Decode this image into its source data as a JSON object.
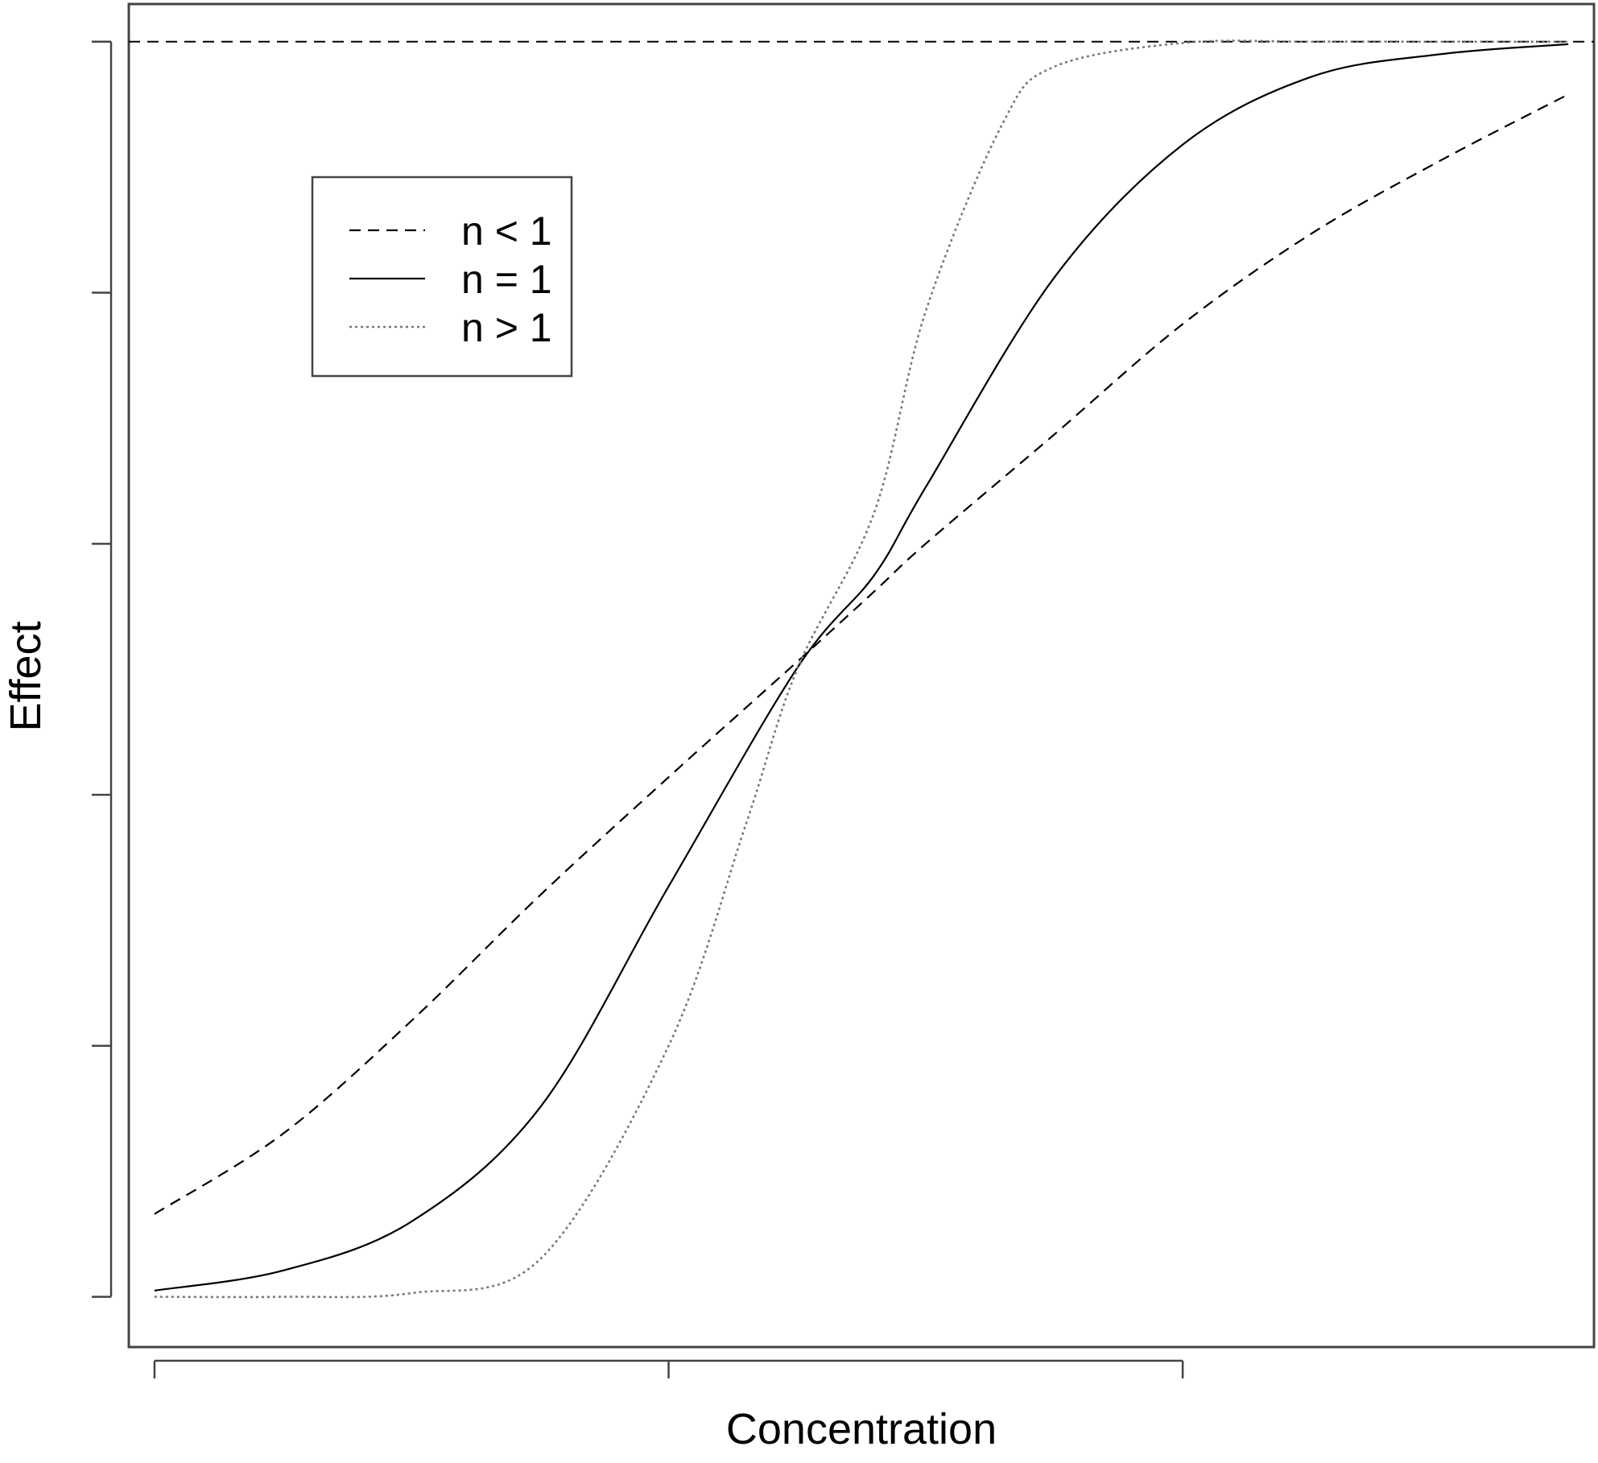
{
  "chart_data": {
    "type": "line",
    "title": "",
    "xlabel": "Concentration",
    "ylabel": "Effect",
    "xlim": [
      -3.1,
      2.6
    ],
    "ylim": [
      -0.04,
      1.03
    ],
    "x_ticks": [
      -3,
      -1,
      1
    ],
    "y_ticks": [
      0,
      0.2,
      0.4,
      0.6,
      0.8,
      1.0
    ],
    "x_tick_labels_shown": false,
    "y_tick_labels_shown": false,
    "grid": false,
    "legend_position": "top-left",
    "reference_line": {
      "y": 1.0,
      "style": "dashed",
      "color": "#000000"
    },
    "series": [
      {
        "name": "n < 1",
        "style": "dashed",
        "color": "#000000",
        "x": [
          -3.0,
          -2.5,
          -2.0,
          -1.5,
          -1.0,
          -0.5,
          -0.2,
          0.0,
          0.5,
          1.0,
          1.5,
          2.0,
          2.5
        ],
        "y": [
          0.066,
          0.13,
          0.22,
          0.32,
          0.414,
          0.506,
          0.562,
          0.6,
          0.687,
          0.775,
          0.847,
          0.905,
          0.958
        ]
      },
      {
        "name": "n = 1",
        "style": "solid",
        "color": "#000000",
        "x": [
          -3.0,
          -2.5,
          -2.0,
          -1.5,
          -1.0,
          -0.5,
          -0.2,
          0.0,
          0.5,
          1.0,
          1.5,
          2.0,
          2.5
        ],
        "y": [
          0.005,
          0.021,
          0.06,
          0.151,
          0.327,
          0.501,
          0.575,
          0.645,
          0.812,
          0.918,
          0.972,
          0.99,
          0.998
        ]
      },
      {
        "name": "n > 1",
        "style": "dotted",
        "color": "#777777",
        "x": [
          -3.0,
          -2.5,
          -2.0,
          -1.5,
          -1.0,
          -0.7,
          -0.5,
          -0.2,
          0.0,
          0.3,
          0.5,
          1.0,
          1.5,
          2.0,
          2.5
        ],
        "y": [
          0.0,
          0.0,
          0.003,
          0.03,
          0.2,
          0.376,
          0.5,
          0.625,
          0.785,
          0.935,
          0.98,
          0.999,
          1.0,
          1.0,
          1.0
        ]
      }
    ]
  }
}
